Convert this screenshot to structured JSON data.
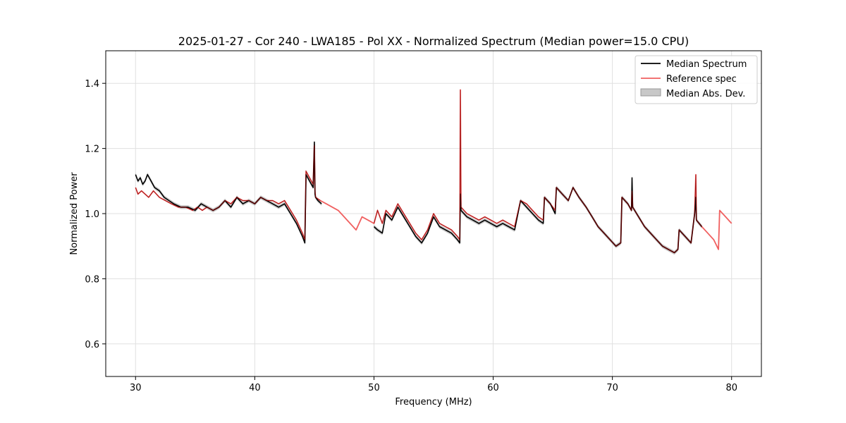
{
  "chart_data": {
    "type": "line",
    "title": "2025-01-27 - Cor 240 - LWA185 - Pol XX - Normalized Spectrum (Median power=15.0 CPU)",
    "xlabel": "Frequency (MHz)",
    "ylabel": "Normalized Power",
    "xlim": [
      27.5,
      82.5
    ],
    "ylim": [
      0.5,
      1.5
    ],
    "xticks": [
      30,
      40,
      50,
      60,
      70,
      80
    ],
    "yticks": [
      0.6,
      0.8,
      1.0,
      1.2,
      1.4
    ],
    "xtick_labels": [
      "30",
      "40",
      "50",
      "60",
      "70",
      "80"
    ],
    "ytick_labels": [
      "0.6",
      "0.8",
      "1.0",
      "1.2",
      "1.4"
    ],
    "grid": true,
    "legend_position": "top-right",
    "legend": [
      "Median Spectrum",
      "Reference spec",
      "Median Abs. Dev."
    ],
    "colors": {
      "median": "#000000",
      "reference": "#f06060",
      "mad": "#b0b0b0",
      "grid": "#e0e0e0"
    },
    "series": [
      {
        "name": "Median Spectrum",
        "segments": [
          {
            "x": [
              30.0,
              30.2,
              30.4,
              30.6,
              30.8,
              31.0,
              31.3,
              31.6,
              32.0,
              32.4,
              32.8,
              33.2,
              33.8,
              34.4,
              35.0,
              35.5,
              36.0,
              36.5,
              37.0,
              37.5,
              38.0,
              38.5,
              39.0,
              39.5,
              40.0,
              40.5,
              41.0,
              41.5,
              42.0,
              42.5,
              43.0,
              43.5,
              44.0,
              44.2,
              44.3,
              44.6,
              44.9,
              45.0,
              45.05,
              45.1,
              45.3,
              45.6
            ],
            "y": [
              1.12,
              1.1,
              1.11,
              1.09,
              1.1,
              1.12,
              1.1,
              1.08,
              1.07,
              1.05,
              1.04,
              1.03,
              1.02,
              1.02,
              1.01,
              1.03,
              1.02,
              1.01,
              1.02,
              1.04,
              1.02,
              1.05,
              1.03,
              1.04,
              1.03,
              1.05,
              1.04,
              1.03,
              1.02,
              1.03,
              1.0,
              0.97,
              0.93,
              0.91,
              1.12,
              1.1,
              1.08,
              1.22,
              1.06,
              1.05,
              1.04,
              1.03
            ]
          },
          {
            "x": [
              50.0,
              50.3,
              50.7,
              51.0,
              51.5,
              52.0,
              52.5,
              53.0,
              53.5,
              54.0,
              54.5,
              55.0,
              55.5,
              56.0,
              56.5,
              57.0,
              57.2,
              57.25,
              57.3,
              57.8,
              58.3,
              58.8,
              59.3,
              59.8,
              60.3,
              60.8,
              61.3,
              61.8,
              62.3,
              62.8,
              63.3,
              63.8,
              64.2,
              64.3,
              64.8,
              65.2,
              65.3,
              65.8,
              66.3,
              66.7,
              67.2,
              67.8,
              68.3,
              68.8,
              69.3,
              69.8,
              70.3,
              70.7,
              70.8,
              71.3,
              71.6,
              71.65,
              71.7,
              72.2,
              72.7,
              73.2,
              73.7,
              74.2,
              74.7,
              75.2,
              75.5,
              75.6,
              76.1,
              76.6,
              76.9,
              77.0,
              77.05,
              77.5
            ],
            "y": [
              0.96,
              0.95,
              0.94,
              1.0,
              0.98,
              1.02,
              0.99,
              0.96,
              0.93,
              0.91,
              0.94,
              0.99,
              0.96,
              0.95,
              0.94,
              0.92,
              0.91,
              1.06,
              1.01,
              0.99,
              0.98,
              0.97,
              0.98,
              0.97,
              0.96,
              0.97,
              0.96,
              0.95,
              1.04,
              1.02,
              1.0,
              0.98,
              0.97,
              1.05,
              1.03,
              1.0,
              1.08,
              1.06,
              1.04,
              1.08,
              1.05,
              1.02,
              0.99,
              0.96,
              0.94,
              0.92,
              0.9,
              0.91,
              1.05,
              1.03,
              1.01,
              1.11,
              1.02,
              0.99,
              0.96,
              0.94,
              0.92,
              0.9,
              0.89,
              0.88,
              0.89,
              0.95,
              0.93,
              0.91,
              1.0,
              1.05,
              0.98,
              0.96
            ]
          }
        ]
      },
      {
        "name": "Reference spec",
        "segments": [
          {
            "x": [
              30.0,
              30.2,
              30.5,
              30.8,
              31.1,
              31.5,
              32.0,
              32.5,
              33.0,
              33.6,
              34.2,
              34.8,
              35.2,
              35.6,
              36.0,
              36.5,
              37.0,
              37.5,
              38.0,
              38.5,
              39.0,
              39.5,
              40.0,
              40.5,
              41.0,
              41.5,
              42.0,
              42.5,
              43.0,
              43.5,
              44.0,
              44.2,
              44.3,
              44.6,
              44.9,
              45.0,
              45.05,
              45.1,
              45.5,
              46.0,
              46.5,
              47.0,
              47.5,
              48.0,
              48.5,
              49.0,
              49.5,
              50.0,
              50.3,
              50.7,
              51.0,
              51.5,
              52.0,
              52.5,
              53.0,
              53.5,
              54.0,
              54.5,
              55.0,
              55.5,
              56.0,
              56.5,
              57.0,
              57.2,
              57.25,
              57.3,
              57.8,
              58.3,
              58.8,
              59.3,
              59.8,
              60.3,
              60.8,
              61.3,
              61.8,
              62.3,
              62.8,
              63.3,
              63.8,
              64.2,
              64.3,
              64.8,
              65.2,
              65.3,
              65.8,
              66.3,
              66.7,
              67.2,
              67.8,
              68.3,
              68.8,
              69.3,
              69.8,
              70.3,
              70.7,
              70.8,
              71.3,
              71.6,
              71.65,
              71.7,
              72.2,
              72.7,
              73.2,
              73.7,
              74.2,
              74.7,
              75.2,
              75.5,
              75.6,
              76.1,
              76.6,
              76.9,
              77.0,
              77.05,
              77.5,
              78.0,
              78.5,
              78.9,
              79.0,
              79.5,
              80.0
            ],
            "y": [
              1.08,
              1.06,
              1.07,
              1.06,
              1.05,
              1.07,
              1.05,
              1.04,
              1.03,
              1.02,
              1.02,
              1.01,
              1.02,
              1.01,
              1.02,
              1.01,
              1.02,
              1.04,
              1.03,
              1.05,
              1.04,
              1.04,
              1.03,
              1.05,
              1.04,
              1.04,
              1.03,
              1.04,
              1.01,
              0.98,
              0.94,
              0.92,
              1.13,
              1.11,
              1.09,
              1.21,
              1.07,
              1.05,
              1.04,
              1.03,
              1.02,
              1.01,
              0.99,
              0.97,
              0.95,
              0.99,
              0.98,
              0.97,
              1.01,
              0.97,
              1.01,
              0.99,
              1.03,
              1.0,
              0.97,
              0.94,
              0.92,
              0.95,
              1.0,
              0.97,
              0.96,
              0.95,
              0.93,
              0.92,
              1.38,
              1.02,
              1.0,
              0.99,
              0.98,
              0.99,
              0.98,
              0.97,
              0.98,
              0.97,
              0.96,
              1.04,
              1.03,
              1.01,
              0.99,
              0.98,
              1.05,
              1.03,
              1.01,
              1.08,
              1.06,
              1.04,
              1.08,
              1.05,
              1.02,
              0.99,
              0.96,
              0.94,
              0.92,
              0.9,
              0.91,
              1.05,
              1.03,
              1.01,
              1.07,
              1.02,
              0.99,
              0.96,
              0.94,
              0.92,
              0.9,
              0.89,
              0.88,
              0.89,
              0.95,
              0.93,
              0.91,
              1.0,
              1.12,
              0.98,
              0.96,
              0.94,
              0.92,
              0.89,
              1.01,
              0.99,
              0.97
            ]
          }
        ]
      }
    ],
    "mad_band": {
      "name": "Median Abs. Dev.",
      "half_width": 0.006
    }
  }
}
